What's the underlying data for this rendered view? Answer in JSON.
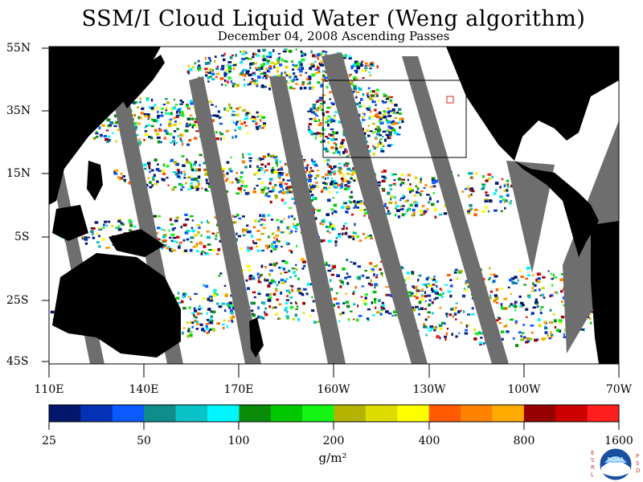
{
  "title": "SSM/I Cloud Liquid Water (Weng algorithm)",
  "subtitle": "December 04, 2008  Ascending Passes",
  "lat_labels": [
    "55N",
    "35N",
    "15N",
    "5S",
    "25S",
    "45S"
  ],
  "lon_labels": [
    "110E",
    "140E",
    "170E",
    "160W",
    "130W",
    "100W",
    "70W"
  ],
  "colorbar": {
    "colors": [
      "#02176b",
      "#0532b4",
      "#0a5aff",
      "#0f8c8c",
      "#0ac3c8",
      "#00f5ff",
      "#0a8c0a",
      "#00c800",
      "#14f514",
      "#b4b400",
      "#dcdc00",
      "#ffff00",
      "#ff5a00",
      "#ff8200",
      "#ffaa00",
      "#960000",
      "#cd0000",
      "#ff1e1e"
    ],
    "tick_labels": [
      "25",
      "50",
      "100",
      "200",
      "400",
      "800",
      "1600"
    ]
  },
  "units": "g/m²",
  "logo": {
    "name": "noaa-logo",
    "text": "NOAA",
    "left_letters": "ESRL",
    "right_letters": "PSD"
  },
  "colors": {
    "swath_gap": "#6e6e6e",
    "land": "#000000",
    "background": "#ffffff"
  }
}
